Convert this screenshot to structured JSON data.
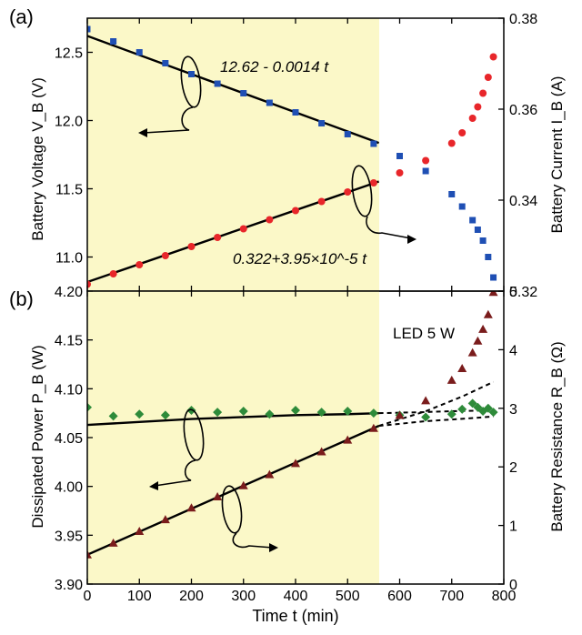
{
  "panel_labels": [
    "(a)",
    "(b)"
  ],
  "xlabel": "Time t (min)",
  "colors": {
    "voltage": "#1f4fb4",
    "current": "#e8262a",
    "power": "#2e8b3a",
    "resistance": "#7a1c1c",
    "highlight": "#fbf8c8"
  },
  "chart_data": [
    {
      "type": "scatter",
      "panel": "(a)",
      "xlim": [
        0,
        800
      ],
      "ylim_left": [
        10.75,
        12.75
      ],
      "ylim_right": [
        0.32,
        0.38
      ],
      "xticks": [
        0,
        100,
        200,
        300,
        400,
        500,
        600,
        700,
        800
      ],
      "yticks_left": [
        "12.5",
        "12.0",
        "11.5",
        "11.0"
      ],
      "yticks_right": [
        "0.38",
        "0.36",
        "0.34",
        "0.32"
      ],
      "ylabel_left": "Battery Voltage V_B (V)",
      "ylabel_right": "Battery Current I_B (A)",
      "highlight_x": [
        0,
        560
      ],
      "annotations": [
        "12.62 - 0.0014 t",
        "0.322+3.95×10^-5 t"
      ],
      "fits": [
        {
          "axis": "left",
          "x": [
            0,
            560
          ],
          "y": [
            12.62,
            11.836
          ]
        },
        {
          "axis": "right",
          "x": [
            0,
            560
          ],
          "y": [
            0.322,
            0.3441
          ]
        }
      ],
      "series": [
        {
          "axis": "left",
          "marker": "square",
          "x": [
            0,
            50,
            100,
            150,
            200,
            250,
            300,
            350,
            400,
            450,
            500,
            550,
            600,
            650,
            700,
            720,
            740,
            750,
            760,
            770,
            780
          ],
          "y": [
            12.67,
            12.58,
            12.5,
            12.42,
            12.34,
            12.27,
            12.2,
            12.13,
            12.06,
            11.98,
            11.9,
            11.83,
            11.74,
            11.63,
            11.46,
            11.37,
            11.27,
            11.2,
            11.12,
            11.0,
            10.85
          ]
        },
        {
          "axis": "right",
          "marker": "circle",
          "x": [
            0,
            50,
            100,
            150,
            200,
            250,
            300,
            350,
            400,
            450,
            500,
            550,
            600,
            650,
            700,
            720,
            740,
            750,
            760,
            770,
            780
          ],
          "y": [
            0.3215,
            0.3238,
            0.3258,
            0.3278,
            0.3298,
            0.3318,
            0.3337,
            0.3357,
            0.3377,
            0.3397,
            0.3418,
            0.3438,
            0.346,
            0.3487,
            0.3525,
            0.3548,
            0.358,
            0.3605,
            0.3635,
            0.367,
            0.3715
          ]
        }
      ]
    },
    {
      "type": "scatter",
      "panel": "(b)",
      "xlim": [
        0,
        800
      ],
      "ylim_left": [
        3.9,
        4.2
      ],
      "ylim_right": [
        0,
        5
      ],
      "xticks": [
        0,
        100,
        200,
        300,
        400,
        500,
        600,
        700,
        800
      ],
      "yticks_left": [
        "4.20",
        "4.15",
        "4.10",
        "4.05",
        "4.00",
        "3.95",
        "3.90"
      ],
      "yticks_right": [
        "5",
        "4",
        "3",
        "2",
        "1",
        "0"
      ],
      "ylabel_left": "Dissipated Power P_B (W)",
      "ylabel_right": "Battery Resistance R_B (Ω)",
      "highlight_x": [
        0,
        560
      ],
      "annotations": [
        "LED 5 W"
      ],
      "fits": [
        {
          "axis": "left",
          "x": [
            0,
            100,
            200,
            300,
            400,
            500,
            560
          ],
          "y": [
            4.063,
            4.066,
            4.069,
            4.071,
            4.073,
            4.074,
            4.075
          ]
        },
        {
          "axis": "left",
          "style": "dashed",
          "x": [
            560,
            640,
            700,
            780
          ],
          "y": [
            4.075,
            4.076,
            4.077,
            4.078
          ]
        },
        {
          "axis": "right",
          "x": [
            0,
            560
          ],
          "y": [
            0.5,
            2.7
          ]
        },
        {
          "axis": "right",
          "style": "dashed",
          "x": [
            560,
            650,
            720,
            780
          ],
          "y": [
            2.7,
            2.95,
            3.2,
            3.45
          ]
        },
        {
          "axis": "right",
          "style": "dashed",
          "x": [
            560,
            650,
            720,
            780
          ],
          "y": [
            2.7,
            2.78,
            2.82,
            2.86
          ]
        }
      ],
      "series": [
        {
          "axis": "left",
          "marker": "diamond",
          "x": [
            0,
            50,
            100,
            150,
            200,
            250,
            300,
            350,
            400,
            450,
            500,
            550,
            600,
            650,
            700,
            720,
            740,
            750,
            760,
            770,
            780
          ],
          "y": [
            4.081,
            4.072,
            4.074,
            4.073,
            4.078,
            4.076,
            4.077,
            4.074,
            4.078,
            4.076,
            4.077,
            4.075,
            4.073,
            4.071,
            4.074,
            4.079,
            4.085,
            4.081,
            4.077,
            4.08,
            4.076
          ]
        },
        {
          "axis": "right",
          "marker": "triangle",
          "x": [
            0,
            50,
            100,
            150,
            200,
            250,
            300,
            350,
            400,
            450,
            500,
            550,
            600,
            650,
            700,
            720,
            740,
            750,
            760,
            770,
            780
          ],
          "y": [
            0.5,
            0.7,
            0.9,
            1.1,
            1.3,
            1.49,
            1.68,
            1.87,
            2.06,
            2.26,
            2.46,
            2.66,
            2.88,
            3.13,
            3.48,
            3.68,
            3.95,
            4.15,
            4.35,
            4.6,
            4.98
          ]
        }
      ]
    }
  ]
}
